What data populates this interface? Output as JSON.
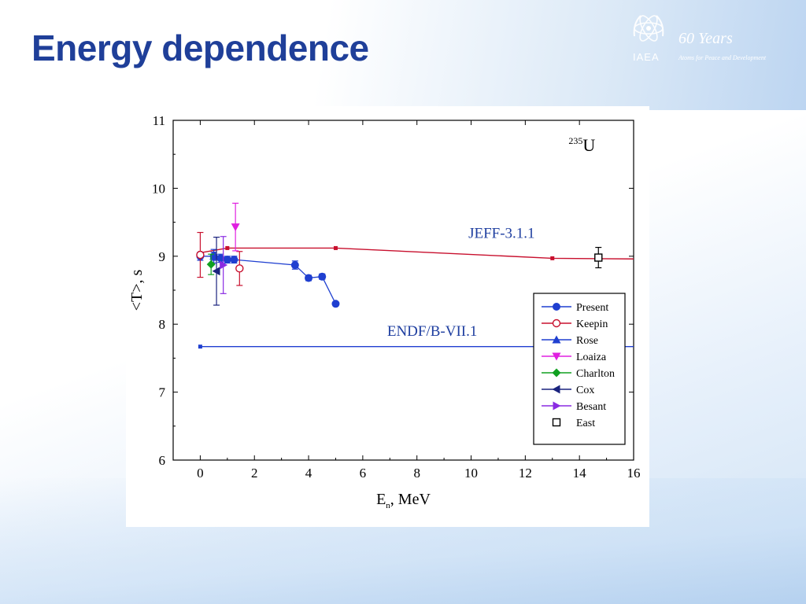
{
  "slide": {
    "title": "Energy dependence"
  },
  "logo": {
    "years": "60 Years",
    "org": "IAEA",
    "tagline": "Atoms for Peace and Development",
    "icon": "iaea-atom-icon"
  },
  "chart_data": {
    "type": "scatter",
    "xlabel_main": "E",
    "xlabel_sub": "n",
    "xlabel_rest": ", MeV",
    "ylabel": "<T>, s",
    "xlim": [
      -1,
      16
    ],
    "ylim": [
      6,
      11
    ],
    "xticks": [
      "0",
      "2",
      "4",
      "6",
      "8",
      "10",
      "12",
      "14",
      "16"
    ],
    "yticks": [
      "6",
      "7",
      "8",
      "9",
      "10",
      "11"
    ],
    "nuclide_mass": "235",
    "nuclide_symbol": "U",
    "annotations": {
      "jeff": "JEFF-3.1.1",
      "endf": "ENDF/B-VII.1"
    },
    "legend_position": "bottom-right",
    "lines": [
      {
        "label": "JEFF-3.1.1",
        "color": "#c8102e",
        "x": [
          0,
          1,
          5,
          13,
          16
        ],
        "y": [
          9.05,
          9.12,
          9.12,
          8.97,
          8.96
        ]
      },
      {
        "label": "ENDF/B-VII.1",
        "color": "#1f3fd0",
        "x": [
          0,
          16
        ],
        "y": [
          7.67,
          7.67
        ]
      }
    ],
    "series": [
      {
        "name": "Present",
        "color": "#1f3fd0",
        "marker": "circle-filled",
        "connect": true,
        "x": [
          0,
          0.5,
          0.75,
          1.0,
          1.25,
          3.5,
          4.0,
          4.5,
          5.0
        ],
        "y": [
          9.0,
          9.0,
          8.97,
          8.95,
          8.95,
          8.87,
          8.68,
          8.7,
          8.3
        ],
        "err": [
          0.06,
          0.06,
          0.06,
          0.05,
          0.05,
          0.06,
          0.04,
          0.04,
          0.03
        ]
      },
      {
        "name": "Keepin",
        "color": "#c8102e",
        "marker": "circle-open",
        "x": [
          0,
          1.45
        ],
        "y": [
          9.02,
          8.82
        ],
        "err": [
          0.33,
          0.25
        ]
      },
      {
        "name": "Rose",
        "color": "#1f3fd0",
        "marker": "triangle-up",
        "x": [
          0.5
        ],
        "y": [
          9.0
        ],
        "err": [
          0.1
        ]
      },
      {
        "name": "Loaiza",
        "color": "#e020e0",
        "marker": "triangle-down",
        "x": [
          1.3
        ],
        "y": [
          9.43
        ],
        "err": [
          0.35
        ]
      },
      {
        "name": "Charlton",
        "color": "#10a020",
        "marker": "diamond",
        "x": [
          0.4
        ],
        "y": [
          8.88
        ],
        "err": [
          0.15
        ]
      },
      {
        "name": "Cox",
        "color": "#1a237e",
        "marker": "triangle-left",
        "x": [
          0.6
        ],
        "y": [
          8.78
        ],
        "err": [
          0.5
        ]
      },
      {
        "name": "Besant",
        "color": "#8a2be2",
        "marker": "triangle-right",
        "x": [
          0.85
        ],
        "y": [
          8.87
        ],
        "err": [
          0.42
        ]
      },
      {
        "name": "East",
        "color": "#000000",
        "marker": "square-open",
        "x": [
          14.7
        ],
        "y": [
          8.98
        ],
        "err": [
          0.15
        ]
      }
    ]
  }
}
